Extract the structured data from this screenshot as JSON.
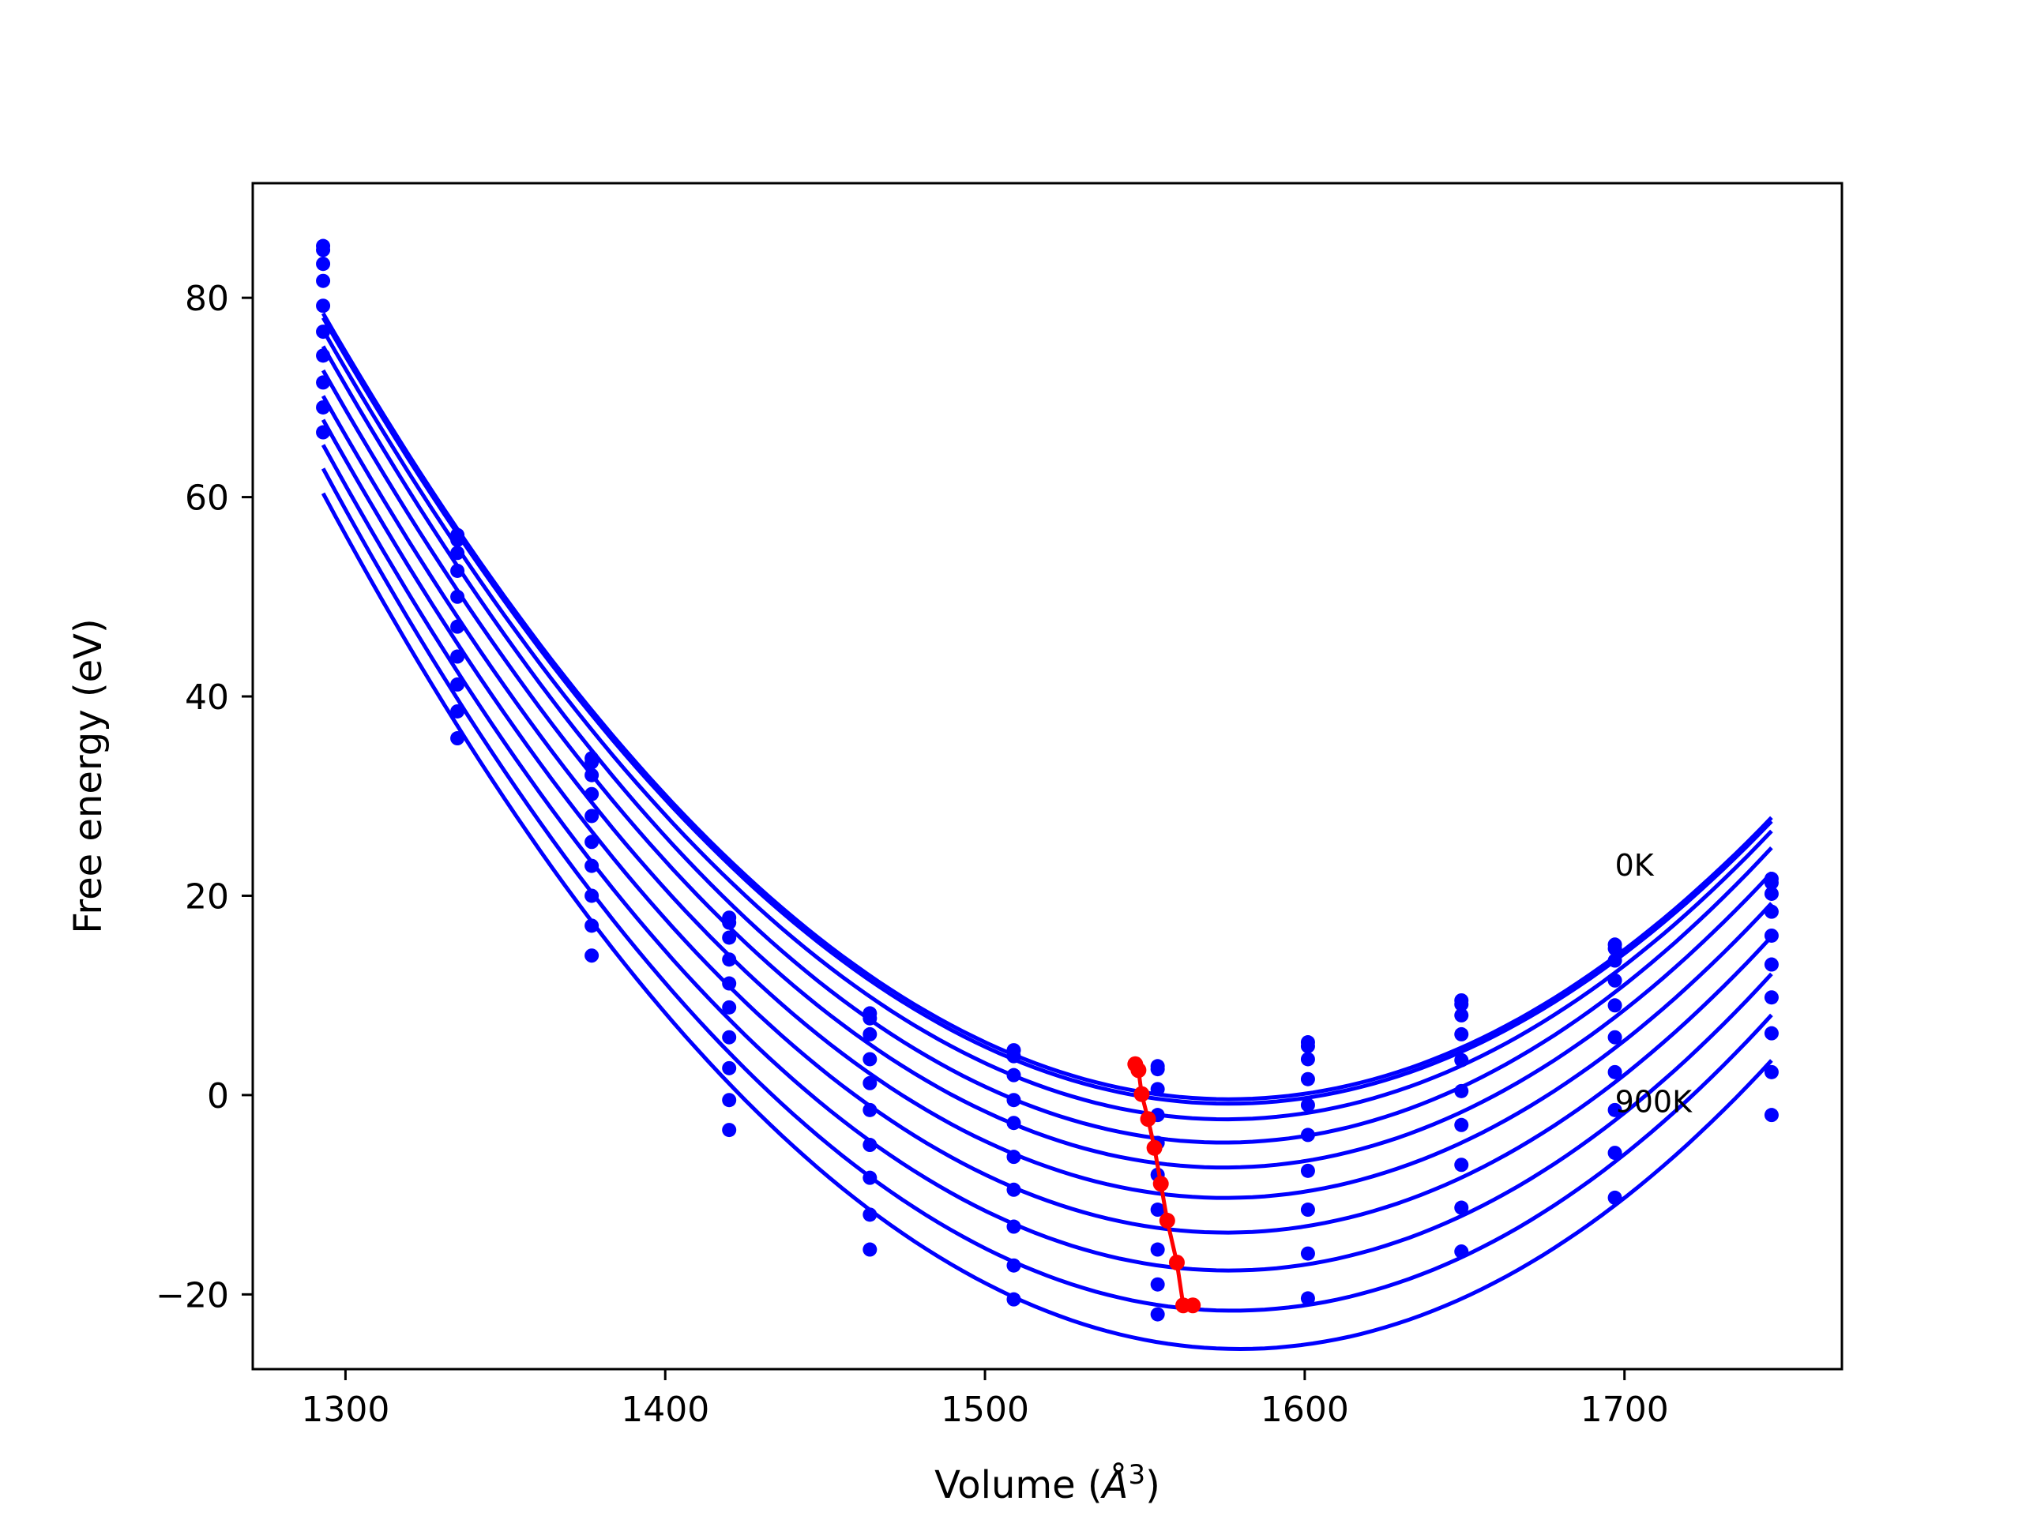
{
  "chart_data": {
    "type": "line",
    "xlabel": "Volume (",
    "xlabel_unit": "Å",
    "xlabel_exp": "3",
    "xlabel_close": ")",
    "ylabel": "Free energy (eV)",
    "xlim": [
      1271,
      1768
    ],
    "ylim": [
      -27.5,
      91.5
    ],
    "xticks": [
      1300,
      1400,
      1500,
      1600,
      1700
    ],
    "yticks": [
      -20,
      0,
      20,
      40,
      60,
      80
    ],
    "ytick_labels": [
      "−20",
      "0",
      "20",
      "40",
      "60",
      "80"
    ],
    "grid": false,
    "curve_color": "#0000ff",
    "min_color": "#ff0000",
    "volumes": [
      1293,
      1335,
      1377,
      1420,
      1464,
      1509,
      1554,
      1601,
      1649,
      1697,
      1746
    ],
    "series": [
      {
        "values": [
          85.2,
          56.2,
          33.8,
          17.8,
          8.2,
          4.5,
          2.9,
          5.3,
          9.5,
          15.1,
          21.7
        ]
      },
      {
        "values": [
          84.8,
          55.7,
          33.4,
          17.3,
          7.7,
          3.9,
          2.6,
          4.9,
          9.1,
          14.7,
          21.3
        ]
      },
      {
        "values": [
          83.4,
          54.4,
          32.1,
          15.8,
          6.1,
          2.0,
          0.6,
          3.6,
          8.0,
          13.5,
          20.2
        ]
      },
      {
        "values": [
          81.7,
          52.6,
          30.2,
          13.6,
          3.6,
          -0.5,
          -2.0,
          1.6,
          6.1,
          11.5,
          18.4
        ]
      },
      {
        "values": [
          79.2,
          50.0,
          28.0,
          11.2,
          1.2,
          -2.8,
          -4.8,
          -1.0,
          3.5,
          9.0,
          16.0
        ]
      },
      {
        "values": [
          76.6,
          47.0,
          25.4,
          8.8,
          -1.5,
          -6.2,
          -8.0,
          -4.0,
          0.4,
          5.8,
          13.1
        ]
      },
      {
        "values": [
          74.2,
          44.0,
          23.0,
          5.8,
          -5.0,
          -9.5,
          -11.5,
          -7.6,
          -3.0,
          2.3,
          9.8
        ]
      },
      {
        "values": [
          71.5,
          41.2,
          20.0,
          2.7,
          -8.3,
          -13.2,
          -15.5,
          -11.5,
          -7.0,
          -1.5,
          6.2
        ]
      },
      {
        "values": [
          69.0,
          38.5,
          17.0,
          -0.5,
          -12.0,
          -17.1,
          -19.0,
          -15.9,
          -11.3,
          -5.8,
          2.3
        ]
      },
      {
        "values": [
          66.5,
          35.8,
          14.0,
          -3.5,
          -15.5,
          -20.5,
          -22.0,
          -20.4,
          -15.7,
          -10.3,
          -2.0
        ]
      }
    ],
    "minima": {
      "x": [
        1547,
        1548,
        1549,
        1551,
        1553,
        1555,
        1557,
        1560,
        1562,
        1565
      ],
      "y": [
        3.1,
        2.5,
        0.1,
        -2.4,
        -5.3,
        -8.9,
        -12.6,
        -16.8,
        -21.1,
        -21.1
      ]
    },
    "annotations": [
      {
        "text": "0K",
        "x": 1697,
        "y": 22
      },
      {
        "text": "900K",
        "x": 1697,
        "y": -1.7
      }
    ]
  }
}
